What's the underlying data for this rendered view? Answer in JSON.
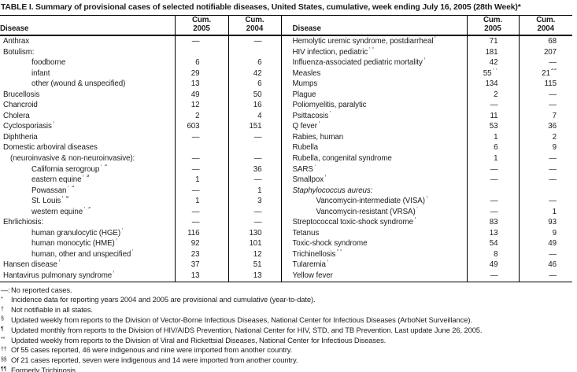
{
  "title": "TABLE I. Summary of provisional cases of selected notifiable diseases, United States, cumulative, week ending July 16, 2005 (28th Week)*",
  "header": {
    "disease": "Disease",
    "cum": "Cum.",
    "y2005": "2005",
    "y2004": "2004"
  },
  "table": {
    "left_rows": [
      {
        "label": "Anthrax",
        "v05": "—",
        "v04": "—"
      },
      {
        "label": "Botulism:",
        "v05": "",
        "v04": ""
      },
      {
        "label": "foodborne",
        "indent": 2,
        "v05": "6",
        "v04": "6"
      },
      {
        "label": "infant",
        "indent": 2,
        "v05": "29",
        "v04": "42"
      },
      {
        "label": "other (wound & unspecified)",
        "indent": 2,
        "v05": "13",
        "v04": "6"
      },
      {
        "label": "Brucellosis",
        "v05": "49",
        "v04": "50"
      },
      {
        "label": "Chancroid",
        "v05": "12",
        "v04": "16"
      },
      {
        "label": "Cholera",
        "v05": "2",
        "v04": "4"
      },
      {
        "label": "Cyclosporiasis",
        "sup": "†",
        "v05": "603",
        "v04": "151"
      },
      {
        "label": "Diphtheria",
        "v05": "—",
        "v04": "—"
      },
      {
        "label": "Domestic arboviral diseases",
        "v05": "",
        "v04": ""
      },
      {
        "label": "(neuroinvasive & non-neuroinvasive):",
        "indent": 1,
        "v05": "—",
        "v04": "—"
      },
      {
        "label": "California serogroup",
        "sup": "† §",
        "indent": 2,
        "v05": "—",
        "v04": "36"
      },
      {
        "label": "eastern equine",
        "sup": "† §",
        "indent": 2,
        "v05": "1",
        "v04": "—"
      },
      {
        "label": "Powassan",
        "sup": "† §",
        "indent": 2,
        "v05": "—",
        "v04": "1"
      },
      {
        "label": "St. Louis",
        "sup": "† §",
        "indent": 2,
        "v05": "1",
        "v04": "3"
      },
      {
        "label": "western equine",
        "sup": "† §",
        "indent": 2,
        "v05": "—",
        "v04": "—"
      },
      {
        "label": "Ehrlichiosis:",
        "v05": "—",
        "v04": "—"
      },
      {
        "label": "human granulocytic (HGE)",
        "sup": "†",
        "indent": 2,
        "v05": "116",
        "v04": "130"
      },
      {
        "label": "human monocytic (HME)",
        "sup": "†",
        "indent": 2,
        "v05": "92",
        "v04": "101"
      },
      {
        "label": "human, other and unspecified",
        "sup": "†",
        "indent": 2,
        "v05": "23",
        "v04": "12"
      },
      {
        "label": "Hansen disease",
        "sup": "†",
        "v05": "37",
        "v04": "51"
      },
      {
        "label": "Hantavirus pulmonary syndrome",
        "sup": "†",
        "v05": "13",
        "v04": "13"
      }
    ],
    "right_rows": [
      {
        "label": "Hemolytic uremic syndrome, postdiarrheal",
        "sup": "†",
        "v05": "71",
        "v04": "68"
      },
      {
        "label": "HIV infection, pediatric",
        "sup": "†¶",
        "v05": "181",
        "v04": "207"
      },
      {
        "label": "Influenza-associated pediatric mortality",
        "sup": "†**",
        "v05": "42",
        "v04": "—"
      },
      {
        "label": "Measles",
        "v05": "55",
        "v05sup": "††",
        "v04": "21",
        "v04sup": "§§"
      },
      {
        "label": "Mumps",
        "v05": "134",
        "v04": "115"
      },
      {
        "label": "Plague",
        "v05": "2",
        "v04": "—"
      },
      {
        "label": "Poliomyelitis, paralytic",
        "v05": "—",
        "v04": "—"
      },
      {
        "label": "Psittacosis",
        "sup": "†",
        "v05": "11",
        "v04": "7"
      },
      {
        "label": "Q fever",
        "sup": "†",
        "v05": "53",
        "v04": "36"
      },
      {
        "label": "Rabies, human",
        "v05": "1",
        "v04": "2"
      },
      {
        "label": "Rubella",
        "v05": "6",
        "v04": "9"
      },
      {
        "label": "Rubella, congenital syndrome",
        "v05": "1",
        "v04": "—"
      },
      {
        "label": "SARS",
        "sup": "† **",
        "v05": "—",
        "v04": "—"
      },
      {
        "label": "Smallpox",
        "sup": "†",
        "v05": "—",
        "v04": "—"
      },
      {
        "label": "Staphylococcus aureus:",
        "italic": true,
        "v05": "",
        "v04": ""
      },
      {
        "label": "Vancomycin-intermediate (VISA)",
        "sup": "†",
        "indent": 2,
        "v05": "—",
        "v04": "—"
      },
      {
        "label": "Vancomycin-resistant (VRSA)",
        "sup": "†",
        "indent": 2,
        "v05": "—",
        "v04": "1"
      },
      {
        "label": "Streptococcal toxic-shock syndrome",
        "sup": "†",
        "v05": "83",
        "v04": "93"
      },
      {
        "label": "Tetanus",
        "v05": "13",
        "v04": "9"
      },
      {
        "label": "Toxic-shock syndrome",
        "v05": "54",
        "v04": "49"
      },
      {
        "label": "Trichinellosis",
        "sup": "¶¶",
        "v05": "8",
        "v04": "—"
      },
      {
        "label": "Tularemia",
        "sup": "†",
        "v05": "49",
        "v04": "46"
      },
      {
        "label": "Yellow fever",
        "v05": "—",
        "v04": "—"
      }
    ]
  },
  "footnotes": [
    {
      "sym": "—:",
      "raised": false,
      "text": "No reported cases."
    },
    {
      "sym": "*",
      "raised": true,
      "text": "Incidence data for reporting years 2004 and 2005 are provisional and cumulative (year-to-date)."
    },
    {
      "sym": "†",
      "raised": true,
      "text": "Not notifiable in all states."
    },
    {
      "sym": "§",
      "raised": true,
      "text": "Updated weekly from reports to the Division of Vector-Borne Infectious Diseases, National Center for Infectious Diseases (ArboNet Surveillance)."
    },
    {
      "sym": "¶",
      "raised": true,
      "text": "Updated monthly from reports to the Division of HIV/AIDS Prevention, National Center for HIV, STD, and TB Prevention. Last update June 26, 2005."
    },
    {
      "sym": "**",
      "raised": true,
      "text": "Updated weekly from reports to the Division of Viral and Rickettsial Diseases, National Center for Infectious Diseases."
    },
    {
      "sym": "††",
      "raised": true,
      "text": "Of 55 cases reported, 46 were indigenous and nine were imported from another country."
    },
    {
      "sym": "§§",
      "raised": true,
      "text": "Of 21 cases reported, seven were indigenous and 14 were imported from another country."
    },
    {
      "sym": "¶¶",
      "raised": true,
      "text": "Formerly Trichinosis."
    }
  ]
}
